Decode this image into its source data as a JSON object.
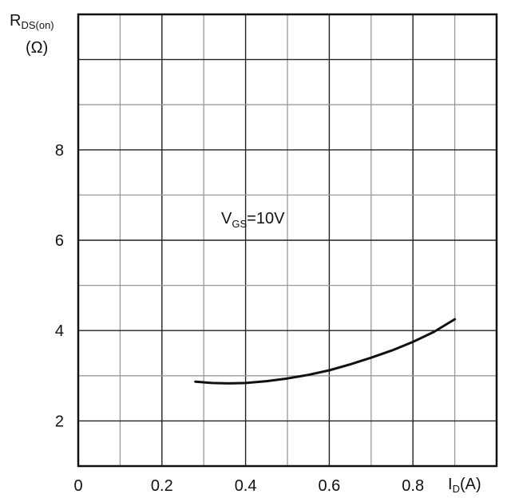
{
  "chart_data": {
    "type": "line",
    "ylabel_main": "R",
    "ylabel_sub": "DS(on)",
    "ylabel_unit": "(Ω)",
    "xlabel_main": "I",
    "xlabel_sub": "D",
    "xlabel_unit": "(A)",
    "annotation_main": "V",
    "annotation_sub": "GS",
    "annotation_value": "=10V",
    "xlim": [
      0,
      1.0
    ],
    "ylim": [
      1,
      11
    ],
    "x_ticks": [
      {
        "value": 0,
        "label": "0"
      },
      {
        "value": 0.2,
        "label": "0.2"
      },
      {
        "value": 0.4,
        "label": "0.4"
      },
      {
        "value": 0.6,
        "label": "0.6"
      },
      {
        "value": 0.8,
        "label": "0.8"
      }
    ],
    "y_ticks": [
      {
        "value": 2,
        "label": "2"
      },
      {
        "value": 4,
        "label": "4"
      },
      {
        "value": 6,
        "label": "6"
      },
      {
        "value": 8,
        "label": "8"
      }
    ],
    "grid": true,
    "series": [
      {
        "x": [
          0.28,
          0.32,
          0.36,
          0.4,
          0.45,
          0.5,
          0.55,
          0.6,
          0.65,
          0.7,
          0.75,
          0.8,
          0.85,
          0.9
        ],
        "y": [
          2.87,
          2.84,
          2.83,
          2.84,
          2.88,
          2.94,
          3.02,
          3.12,
          3.25,
          3.4,
          3.56,
          3.75,
          3.97,
          4.25
        ]
      }
    ]
  }
}
